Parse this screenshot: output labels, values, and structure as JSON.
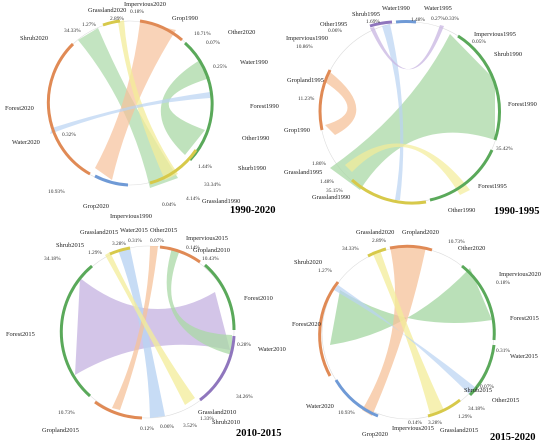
{
  "colors": {
    "forest": "#a9d8a6",
    "forest_edge": "#5aa95a",
    "crop": "#f6c19a",
    "crop_edge": "#e08a55",
    "grass": "#f3ec98",
    "grass_edge": "#d7c94a",
    "impervious": "#f5b8c6",
    "impervious_edge": "#d77990",
    "shrub": "#c8b6e2",
    "shrub_edge": "#8f76bd",
    "water": "#b9d3f2",
    "water_edge": "#6f9ad6",
    "other": "#d8d8d8",
    "other_edge": "#9a9a9a"
  },
  "panels": [
    {
      "title": "1990-2020",
      "labels": [
        "Grassland2020",
        "Impervious2020",
        "Grop1990",
        "Other2020",
        "Water1990",
        "Forest1990",
        "Other1990",
        "Shurb1990",
        "Grassland1990",
        "Impervious1990",
        "Grop2020",
        "Water2020",
        "Forest2020",
        "Shrub2020"
      ],
      "percents": [
        "34.33%",
        "2.89%",
        "0.18%",
        "10.71%",
        "0.07%",
        "0.25%",
        "0.32%",
        "1.44%",
        "33.34%",
        "4.14%",
        "0.04%",
        "10.93%",
        "1.27%"
      ]
    },
    {
      "title": "1990-1995",
      "labels": [
        "Shrub1995",
        "Other1995",
        "Water1990",
        "Water1995",
        "Impervious1995",
        "Shrub1990",
        "Impervious1990",
        "Gropland1995",
        "Forest1990",
        "Grop1990",
        "Grassland1995",
        "Grassland1990",
        "Forest1995",
        "Other1990"
      ],
      "percents": [
        "0.06%",
        "1.69%",
        "1.48%",
        "0.27%",
        "0.33%",
        "0.05%",
        "10.86%",
        "11.23%",
        "35.42%",
        "1.86%",
        "1.48%",
        "35.15%"
      ]
    },
    {
      "title": "2010-2015",
      "labels": [
        "Grassland2015",
        "Shrub2015",
        "Water2015",
        "Other2015",
        "Impervious2015",
        "Gropland2010",
        "Forest2010",
        "Water2010",
        "Forest2015",
        "Gropland2015",
        "Grassland2010",
        "Shrub2010"
      ],
      "percents": [
        "1.29%",
        "3.28%",
        "34.18%",
        "0.31%",
        "0.07%",
        "0.14%",
        "10.43%",
        "0.28%",
        "34.26%",
        "10.73%",
        "0.12%",
        "0.06%",
        "3.52%",
        "1.33%"
      ]
    },
    {
      "title": "2015-2020",
      "labels": [
        "Grassland2020",
        "Gropland2020",
        "Other2020",
        "Shrub2020",
        "Impervious2020",
        "Forest2015",
        "Forest2020",
        "Water2015",
        "Other2015",
        "Shrub2015",
        "Water2020",
        "Grop2020",
        "Impervious2015",
        "Grassland2015"
      ],
      "percents": [
        "34.33%",
        "2.89%",
        "10.73%",
        "1.27%",
        "0.18%",
        "0.31%",
        "0.07%",
        "34.18%",
        "1.29%",
        "3.28%",
        "10.93%",
        "0.14%"
      ]
    }
  ]
}
